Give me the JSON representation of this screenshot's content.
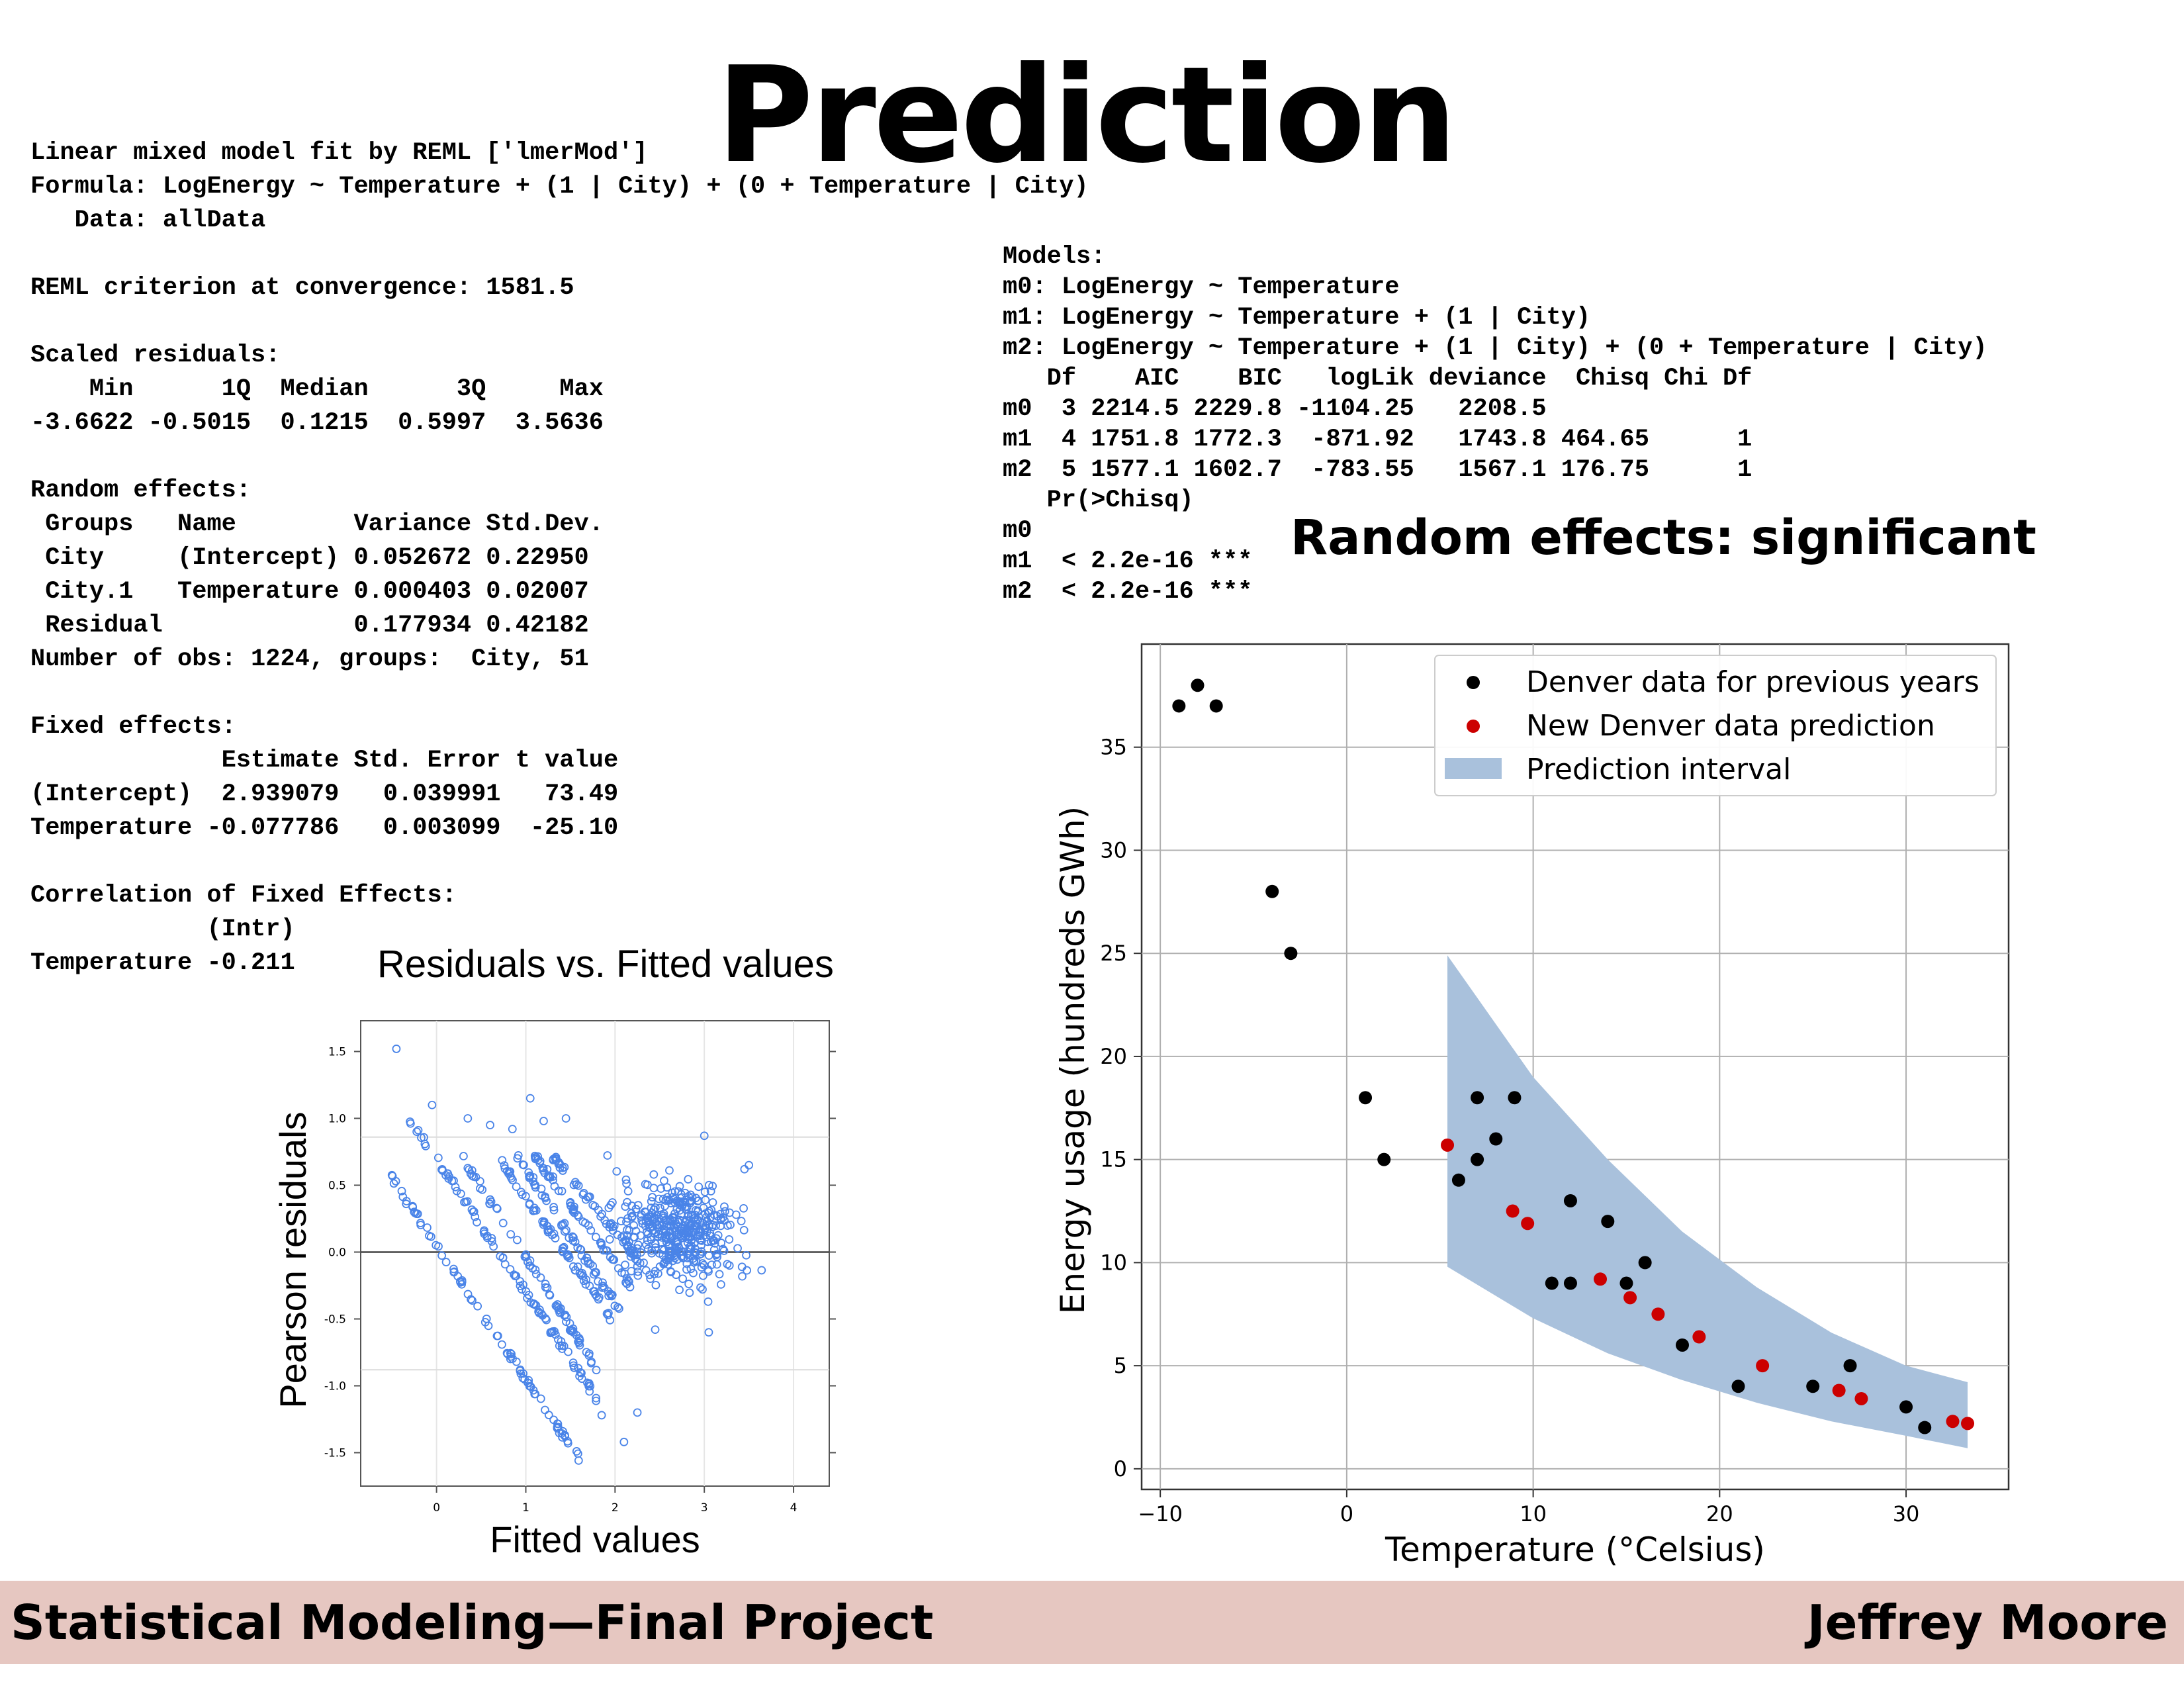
{
  "slide": {
    "title": "Prediction",
    "random_effects_note": "Random effects: significant"
  },
  "lmer_output": {
    "lines": [
      "Linear mixed model fit by REML ['lmerMod']",
      "Formula: LogEnergy ~ Temperature + (1 | City) + (0 + Temperature | City)",
      "   Data: allData",
      "",
      "REML criterion at convergence: 1581.5",
      "",
      "Scaled residuals:",
      "    Min      1Q  Median      3Q     Max",
      "-3.6622 -0.5015  0.1215  0.5997  3.5636",
      "",
      "Random effects:",
      " Groups   Name        Variance Std.Dev.",
      " City     (Intercept) 0.052672 0.22950",
      " City.1   Temperature 0.000403 0.02007",
      " Residual             0.177934 0.42182",
      "Number of obs: 1224, groups:  City, 51",
      "",
      "Fixed effects:",
      "             Estimate Std. Error t value",
      "(Intercept)  2.939079   0.039991   73.49",
      "Temperature -0.077786   0.003099  -25.10",
      "",
      "Correlation of Fixed Effects:",
      "            (Intr)",
      "Temperature -0.211"
    ]
  },
  "anova_output": {
    "lines": [
      "Models:",
      "m0: LogEnergy ~ Temperature",
      "m1: LogEnergy ~ Temperature + (1 | City)",
      "m2: LogEnergy ~ Temperature + (1 | City) + (0 + Temperature | City)",
      "   Df    AIC    BIC   logLik deviance  Chisq Chi Df",
      "m0  3 2214.5 2229.8 -1104.25   2208.5",
      "m1  4 1751.8 1772.3  -871.92   1743.8 464.65      1",
      "m2  5 1577.1 1602.7  -783.55   1567.1 176.75      1",
      "   Pr(>Chisq)",
      "m0",
      "m1  < 2.2e-16 ***",
      "m2  < 2.2e-16 ***"
    ]
  },
  "footer": {
    "left": "Statistical Modeling—Final Project",
    "right": "Jeffrey Moore"
  },
  "colors": {
    "residual_points": "#4a84e8",
    "black_points": "#000000",
    "red_points": "#cc0000",
    "interval_fill": "#a9c1dc",
    "footer_bg": "#e6c7c1"
  },
  "chart_data": [
    {
      "type": "scatter",
      "title": "Residuals vs. Fitted values",
      "xlabel": "Fitted values",
      "ylabel": "Pearson residuals",
      "xlim": [
        -0.85,
        4.4
      ],
      "ylim": [
        -1.75,
        1.73
      ],
      "x_ticks": [
        0,
        1,
        2,
        3,
        4
      ],
      "x_tick_labels": [
        "0",
        "1",
        "2",
        "3",
        "4"
      ],
      "y_ticks": [
        1.5,
        1.0,
        0.5,
        0.0,
        -0.5,
        -1.0,
        -1.5
      ],
      "y_tick_labels": [
        "1.5",
        "1.0",
        "0.5",
        "0.0",
        "-0.5",
        "-1.0",
        "-1.5"
      ],
      "reference_lines_y": [
        0.0,
        0.86,
        -0.88
      ],
      "bands": [
        {
          "x_start": -0.5,
          "x_end": 1.6,
          "resid_start": 0.55,
          "slope": -1.0,
          "n": 85
        },
        {
          "x_start": -0.3,
          "x_end": 1.8,
          "resid_start": 1.0,
          "slope": -1.0,
          "n": 95
        },
        {
          "x_start": 0.3,
          "x_end": 1.8,
          "resid_start": 0.7,
          "slope": -1.05,
          "n": 70
        },
        {
          "x_start": 0.7,
          "x_end": 1.95,
          "resid_start": 0.7,
          "slope": -0.95,
          "n": 65
        },
        {
          "x_start": 0.9,
          "x_end": 2.05,
          "resid_start": 0.72,
          "slope": -1.0,
          "n": 60
        },
        {
          "x_start": 1.1,
          "x_end": 2.2,
          "resid_start": 0.72,
          "slope": -0.9,
          "n": 60
        },
        {
          "x_start": 1.3,
          "x_end": 2.3,
          "resid_start": 0.72,
          "slope": -0.8,
          "n": 55
        }
      ],
      "cloud": {
        "x_center": 2.7,
        "x_spread": 0.55,
        "y_center": 0.15,
        "y_spread": 0.22,
        "n": 420
      },
      "extra_points": {
        "x": [
          -0.45,
          -0.05,
          0.35,
          0.6,
          1.05,
          1.45,
          3.0,
          2.25,
          2.1,
          1.85,
          0.85,
          1.2,
          3.5,
          3.45,
          2.45,
          3.05
        ],
        "y": [
          1.52,
          1.1,
          1.0,
          0.95,
          1.15,
          1.0,
          0.87,
          -1.2,
          -1.42,
          -1.22,
          0.92,
          0.98,
          0.65,
          0.62,
          -0.58,
          -0.6
        ]
      }
    },
    {
      "type": "scatter",
      "xlabel": "Temperature (°Celsius)",
      "ylabel": "Energy usage (hundreds GWh)",
      "xlim": [
        -11,
        35.5
      ],
      "ylim": [
        -1,
        40
      ],
      "x_ticks": [
        -10,
        0,
        10,
        20,
        30
      ],
      "x_tick_labels": [
        "−10",
        "0",
        "10",
        "20",
        "30"
      ],
      "y_ticks": [
        0,
        5,
        10,
        15,
        20,
        25,
        30,
        35
      ],
      "y_tick_labels": [
        "0",
        "5",
        "10",
        "15",
        "20",
        "25",
        "30",
        "35"
      ],
      "legend": {
        "position": "top-right",
        "entries": [
          "Denver data for previous years",
          "New Denver data prediction",
          "Prediction interval"
        ]
      },
      "series": [
        {
          "name": "Denver data for previous years",
          "x": [
            -9,
            -8,
            -7,
            -4,
            -3,
            1,
            2,
            6,
            7,
            7,
            8,
            9,
            11,
            12,
            12,
            14,
            15,
            16,
            18,
            21,
            25,
            27,
            30,
            31
          ],
          "y": [
            37,
            38,
            37,
            28,
            25,
            18,
            15,
            14,
            15,
            18,
            16,
            18,
            9,
            13,
            9,
            12,
            9,
            10,
            6,
            4,
            4,
            5,
            3,
            2
          ]
        },
        {
          "name": "New Denver data prediction",
          "x": [
            5.4,
            8.9,
            9.7,
            13.6,
            15.2,
            16.7,
            18.9,
            22.3,
            26.4,
            27.6,
            32.5,
            33.3
          ],
          "y": [
            15.7,
            12.5,
            11.9,
            9.2,
            8.3,
            7.5,
            6.4,
            5.0,
            3.8,
            3.4,
            2.3,
            2.2
          ]
        }
      ],
      "prediction_interval": {
        "x": [
          5.4,
          10,
          14,
          18,
          22,
          26,
          30,
          33.3
        ],
        "lower": [
          9.8,
          7.3,
          5.6,
          4.3,
          3.2,
          2.3,
          1.6,
          1.0
        ],
        "upper": [
          24.9,
          19.0,
          15.0,
          11.5,
          8.8,
          6.6,
          5.0,
          4.2
        ]
      }
    }
  ]
}
